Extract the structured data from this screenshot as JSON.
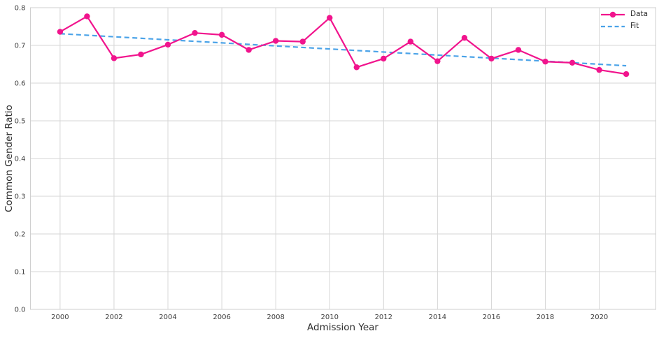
{
  "chart_data": {
    "type": "line",
    "title": "",
    "xlabel": "Admission Year",
    "ylabel": "Common Gender Ratio",
    "xlim": [
      1998.9,
      2022.1
    ],
    "ylim": [
      0.0,
      0.8
    ],
    "xticks": [
      2000,
      2002,
      2004,
      2006,
      2008,
      2010,
      2012,
      2014,
      2016,
      2018,
      2020
    ],
    "yticks": [
      0.0,
      0.1,
      0.2,
      0.3,
      0.4,
      0.5,
      0.6,
      0.7,
      0.8
    ],
    "grid": true,
    "legend_position": "upper right",
    "x": [
      2000,
      2001,
      2002,
      2003,
      2004,
      2005,
      2006,
      2007,
      2008,
      2009,
      2010,
      2011,
      2012,
      2013,
      2014,
      2015,
      2016,
      2017,
      2018,
      2019,
      2020,
      2021
    ],
    "series": [
      {
        "name": "Data",
        "style": "solid-line-with-markers",
        "color": "#F1148D",
        "values": [
          0.736,
          0.777,
          0.666,
          0.676,
          0.702,
          0.733,
          0.728,
          0.688,
          0.712,
          0.71,
          0.773,
          0.642,
          0.665,
          0.71,
          0.658,
          0.72,
          0.665,
          0.688,
          0.657,
          0.654,
          0.635,
          0.624
        ]
      },
      {
        "name": "Fit",
        "style": "dashed-line",
        "color": "#4BA3E8",
        "x": [
          2000,
          2021
        ],
        "values": [
          0.731,
          0.646
        ]
      }
    ]
  },
  "style": {
    "background": "#FFFFFF",
    "grid_color": "#D6D6D6",
    "spine_color": "#CFCFCF",
    "tick_label_color": "#404040",
    "axis_label_color": "#2E2E2E"
  }
}
